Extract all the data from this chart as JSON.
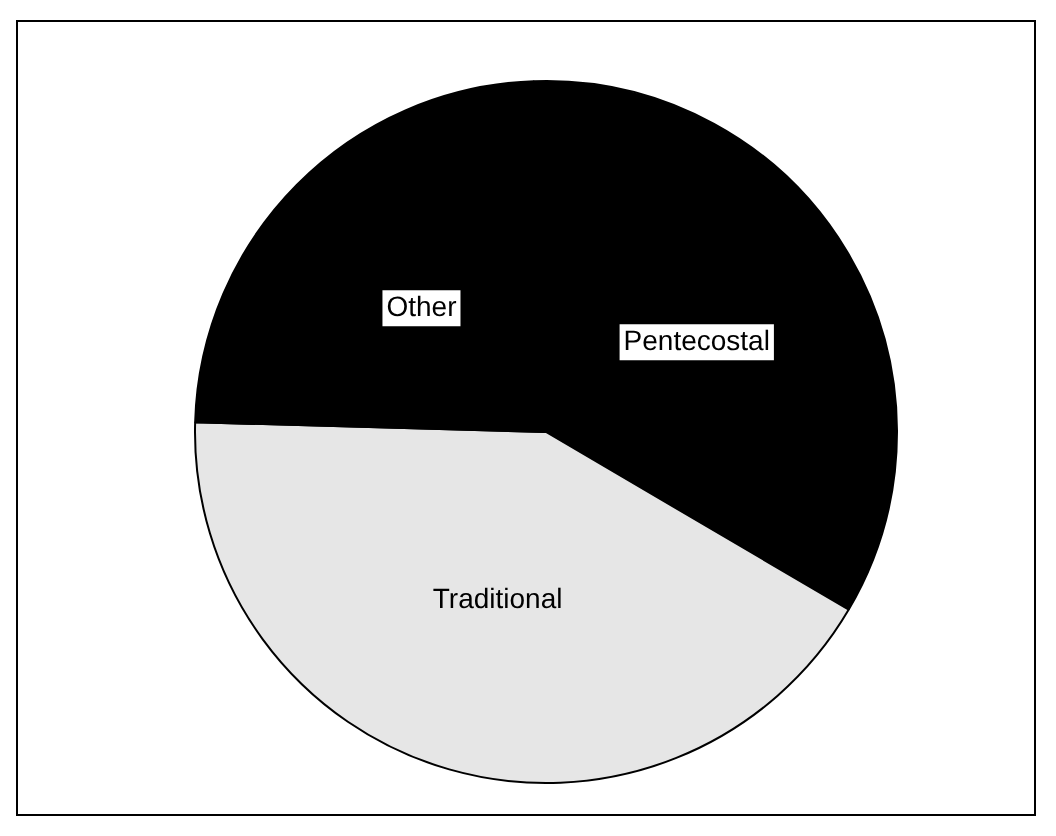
{
  "chart_data": {
    "type": "pie",
    "categories": [
      "Pentecostal",
      "Traditional",
      "Other"
    ],
    "values": [
      34,
      42,
      24
    ],
    "colors": [
      "#000000",
      "#e6e6e6",
      "#000000"
    ],
    "legend": false
  }
}
